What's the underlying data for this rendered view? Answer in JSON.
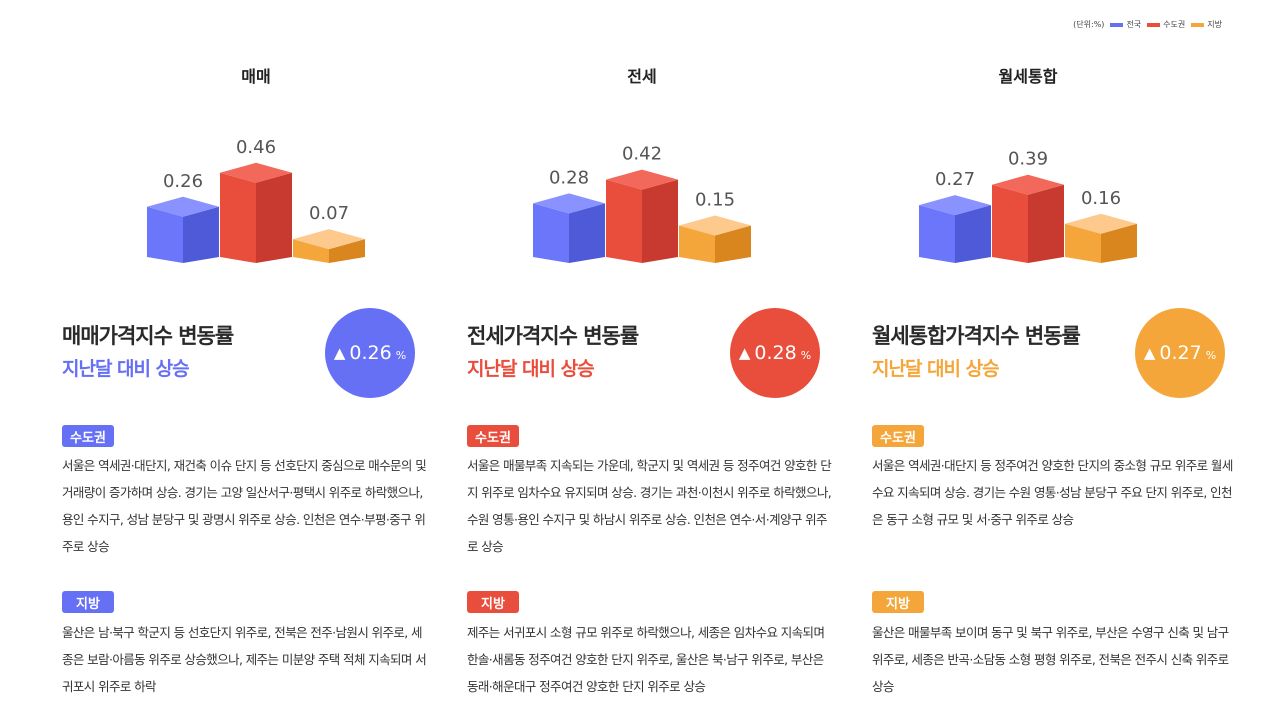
{
  "legend": {
    "unit": "(단위:%)",
    "items": [
      {
        "label": "전국",
        "color": "#6570f5"
      },
      {
        "label": "수도권",
        "color": "#e94e3d"
      },
      {
        "label": "지방",
        "color": "#f4a63a"
      }
    ]
  },
  "chart_data": [
    {
      "type": "bar",
      "title": "매매",
      "categories": [
        "전국",
        "수도권",
        "지방"
      ],
      "values": [
        0.26,
        0.46,
        0.07
      ],
      "labels": [
        "0.26",
        "0.46",
        "0.07"
      ],
      "ylabel": "%"
    },
    {
      "type": "bar",
      "title": "전세",
      "categories": [
        "전국",
        "수도권",
        "지방"
      ],
      "values": [
        0.28,
        0.42,
        0.15
      ],
      "labels": [
        "0.28",
        "0.42",
        "0.15"
      ],
      "ylabel": "%"
    },
    {
      "type": "bar",
      "title": "월세통합",
      "categories": [
        "전국",
        "수도권",
        "지방"
      ],
      "values": [
        0.27,
        0.39,
        0.16
      ],
      "labels": [
        "0.27",
        "0.39",
        "0.16"
      ],
      "ylabel": "%"
    }
  ],
  "colors": {
    "blue": "#6570f5",
    "red": "#e94e3d",
    "orange": "#f4a63a"
  },
  "sections": [
    {
      "heading": "매매가격지수 변동률",
      "sub": "지난달 대비 상승",
      "arrow": "▲",
      "value": "0.26",
      "unit": "%",
      "color": "#6570f5",
      "metro_label": "수도권",
      "metro_text": "서울은 역세권·대단지, 재건축 이슈 단지 등 선호단지 중심으로 매수문의 및 거래량이 증가하며 상승. 경기는 고양 일산서구·평택시 위주로 하락했으나, 용인 수지구, 성남 분당구 및 광명시 위주로 상승. 인천은 연수·부평·중구 위주로 상승",
      "local_label": "지방",
      "local_text": "울산은 남·북구 학군지 등 선호단지 위주로, 전북은 전주·남원시 위주로, 세종은 보람·아름동 위주로 상승했으나, 제주는 미분양 주택 적체 지속되며 서귀포시 위주로 하락"
    },
    {
      "heading": "전세가격지수 변동률",
      "sub": "지난달 대비 상승",
      "arrow": "▲",
      "value": "0.28",
      "unit": "%",
      "color": "#e94e3d",
      "metro_label": "수도권",
      "metro_text": "서울은 매물부족 지속되는 가운데, 학군지 및 역세권 등 정주여건 양호한 단지 위주로 임차수요 유지되며 상승. 경기는 과천·이천시 위주로 하락했으나, 수원 영통·용인 수지구 및 하남시 위주로 상승. 인천은 연수·서·계양구 위주로 상승",
      "local_label": "지방",
      "local_text": "제주는 서귀포시 소형 규모 위주로 하락했으나, 세종은 임차수요 지속되며 한솔·새롬동 정주여건 양호한 단지 위주로, 울산은 북·남구 위주로, 부산은 동래·해운대구 정주여건 양호한 단지 위주로 상승"
    },
    {
      "heading": "월세통합가격지수 변동률",
      "sub": "지난달 대비 상승",
      "arrow": "▲",
      "value": "0.27",
      "unit": "%",
      "color": "#f4a63a",
      "metro_label": "수도권",
      "metro_text": "서울은 역세권·대단지 등 정주여건 양호한 단지의 중소형 규모 위주로 월세 수요 지속되며 상승. 경기는 수원 영통·성남 분당구 주요 단지 위주로, 인천은 동구 소형 규모 및 서·중구 위주로 상승",
      "local_label": "지방",
      "local_text": "울산은 매물부족 보이며 동구 및 북구 위주로, 부산은 수영구 신축 및 남구 위주로, 세종은 반곡·소담동 소형 평형 위주로, 전북은 전주시 신축 위주로 상승"
    }
  ]
}
